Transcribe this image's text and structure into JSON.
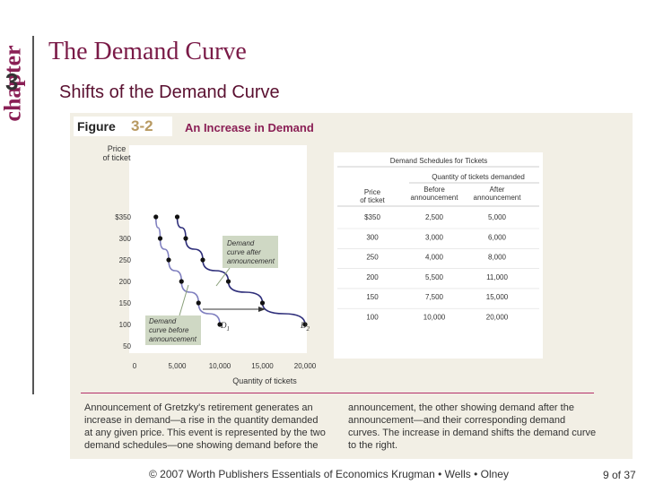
{
  "chapter": {
    "word": "chapter",
    "number": "3"
  },
  "slide": {
    "title": "The Demand Curve",
    "subtitle": "Shifts of the Demand Curve",
    "footer": "© 2007 Worth Publishers   Essentials of Economics   Krugman • Wells • Olney",
    "page": "9 of 37"
  },
  "figure": {
    "label_word": "Figure",
    "label_number": "3-2",
    "title": "An Increase in Demand",
    "caption_left": "Announcement of Gretzky's retirement generates an increase in demand—a rise in the quantity demanded at any given price. This event is represented by the two demand schedules—one showing demand before the",
    "caption_right": "announcement, the other showing demand after the announcement—and their corresponding demand curves. The increase in demand shifts the demand curve to the right."
  },
  "chart_data": {
    "type": "line",
    "ylabel": "Price of ticket",
    "xlabel": "Quantity of tickets",
    "xlim": [
      0,
      20000
    ],
    "ylim": [
      0,
      350
    ],
    "x_ticks": [
      "0",
      "5,000",
      "10,000",
      "15,000",
      "20,000"
    ],
    "y_ticks": [
      "$350",
      "300",
      "250",
      "200",
      "150",
      "100",
      "50"
    ],
    "series": [
      {
        "name": "D1",
        "color": "#7f7fbf",
        "points": [
          [
            2500,
            350
          ],
          [
            3000,
            300
          ],
          [
            4000,
            250
          ],
          [
            5500,
            200
          ],
          [
            7500,
            150
          ],
          [
            10000,
            100
          ]
        ]
      },
      {
        "name": "D2",
        "color": "#2e2e7a",
        "points": [
          [
            5000,
            350
          ],
          [
            6000,
            300
          ],
          [
            8000,
            250
          ],
          [
            11000,
            200
          ],
          [
            15000,
            150
          ],
          [
            20000,
            100
          ]
        ]
      }
    ],
    "annotations": {
      "after_line1": "Demand",
      "after_line2": "curve after",
      "after_line3": "announcement",
      "before_line1": "Demand",
      "before_line2": "curve before",
      "before_line3": "announcement",
      "d1_letter": "D",
      "d1_sub": "1",
      "d2_letter": "D",
      "d2_sub": "2"
    },
    "table": {
      "title": "Demand Schedules for Tickets",
      "group_header": "Quantity of tickets demanded",
      "col1_line1": "Price",
      "col1_line2": "of ticket",
      "col2_line1": "Before",
      "col2_line2": "announcement",
      "col3_line1": "After",
      "col3_line2": "announcement",
      "rows": [
        [
          "$350",
          "2,500",
          "5,000"
        ],
        [
          "300",
          "3,000",
          "6,000"
        ],
        [
          "250",
          "4,000",
          "8,000"
        ],
        [
          "200",
          "5,500",
          "11,000"
        ],
        [
          "150",
          "7,500",
          "15,000"
        ],
        [
          "100",
          "10,000",
          "20,000"
        ]
      ]
    }
  }
}
